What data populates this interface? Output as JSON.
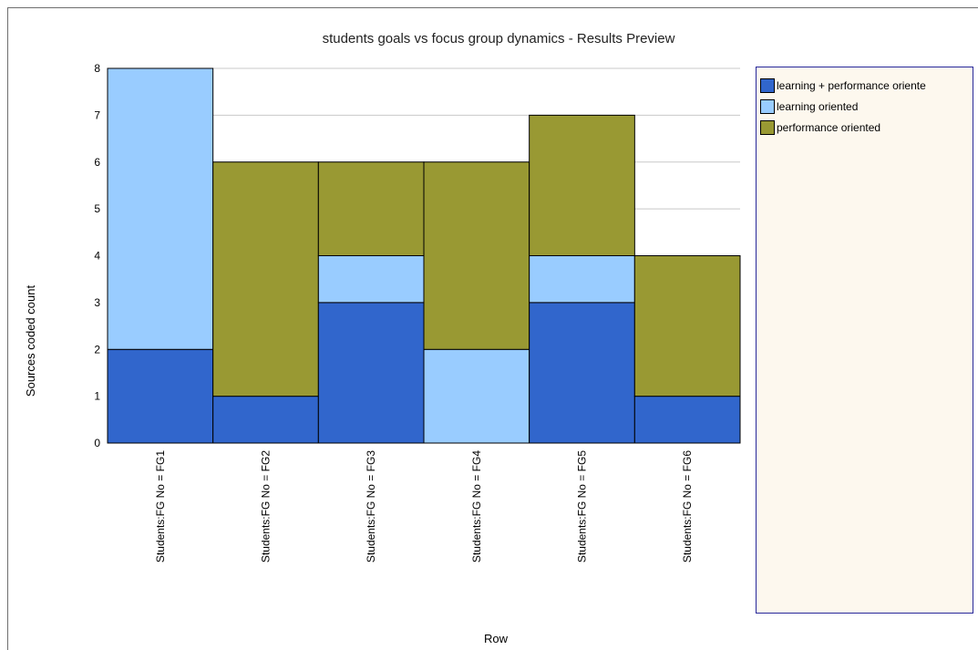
{
  "chart_data": {
    "type": "bar",
    "stacked": true,
    "title": "students goals vs focus group dynamics - Results Preview",
    "xlabel": "Row",
    "ylabel": "Sources coded count",
    "ylim": [
      0,
      8
    ],
    "yticks": [
      "0",
      "1",
      "2",
      "3",
      "4",
      "5",
      "6",
      "7",
      "8"
    ],
    "grid": true,
    "legend_position": "right",
    "categories": [
      "Students:FG No = FG1",
      "Students:FG No = FG2",
      "Students:FG No = FG3",
      "Students:FG No = FG4",
      "Students:FG No = FG5",
      "Students:FG No = FG6"
    ],
    "series": [
      {
        "name": "learning + performance oriente",
        "color": "#3166cc",
        "values": [
          2,
          1,
          3,
          0,
          3,
          1
        ]
      },
      {
        "name": "learning oriented",
        "color": "#99ccff",
        "values": [
          6,
          0,
          1,
          2,
          1,
          0
        ]
      },
      {
        "name": "performance oriented",
        "color": "#999933",
        "values": [
          0,
          5,
          2,
          4,
          3,
          3
        ]
      }
    ]
  }
}
